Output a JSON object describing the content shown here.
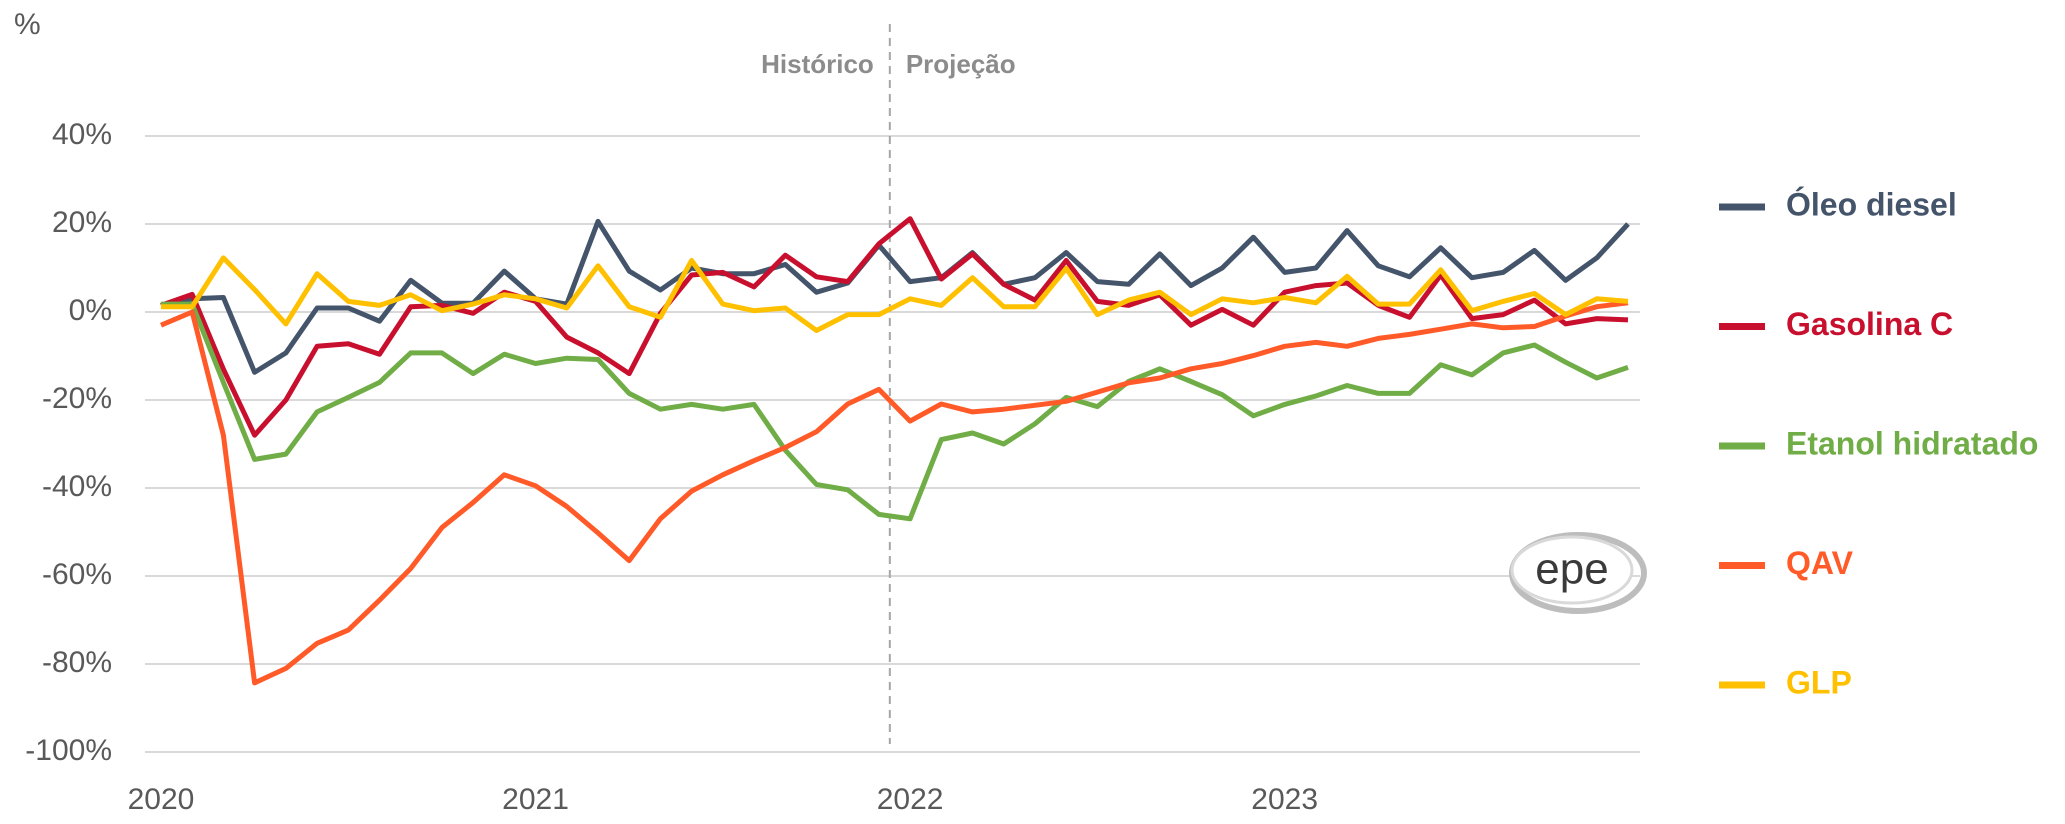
{
  "chart_data": {
    "type": "line",
    "y_label": "%",
    "annotations": [
      "Histórico",
      "Projeção"
    ],
    "logo": "epe",
    "categories": [
      "2020",
      null,
      null,
      null,
      null,
      null,
      null,
      null,
      null,
      null,
      null,
      null,
      "2021",
      null,
      null,
      null,
      null,
      null,
      null,
      null,
      null,
      null,
      null,
      null,
      "2022",
      null,
      null,
      null,
      null,
      null,
      null,
      null,
      null,
      null,
      null,
      null,
      "2023",
      null,
      null,
      null,
      null,
      null,
      null,
      null,
      null,
      null,
      null,
      null
    ],
    "ylim": [
      -100,
      40
    ],
    "yticks": [
      {
        "value": 40,
        "label": "40%"
      },
      {
        "value": 20,
        "label": "20%"
      },
      {
        "value": 0,
        "label": "0%"
      },
      {
        "value": -20,
        "label": "-20%"
      },
      {
        "value": -40,
        "label": "-40%"
      },
      {
        "value": -60,
        "label": "-60%"
      },
      {
        "value": -80,
        "label": "-80%"
      },
      {
        "value": -100,
        "label": "-100%"
      }
    ],
    "grid": true,
    "legend": "right",
    "series": [
      {
        "name": "Óleo diesel",
        "color": "#44546a",
        "values": [
          1.5,
          3,
          3.3,
          -13.7,
          -9.3,
          0.9,
          0.9,
          -2.1,
          7.2,
          2,
          2,
          9.3,
          3,
          1.8,
          20.6,
          9.3,
          5,
          10,
          8.7,
          8.7,
          10.8,
          4.5,
          6.6,
          15.2,
          6.9,
          7.8,
          13.5,
          6.3,
          7.8,
          13.5,
          6.9,
          6.3,
          13.2,
          6,
          10,
          17,
          9,
          10,
          18.5,
          10.5,
          8,
          14.6,
          7.8,
          9,
          14,
          7.2,
          12.3,
          20
        ]
      },
      {
        "name": "Gasolina C",
        "color": "#c8102e",
        "values": [
          1.5,
          4,
          -13,
          -28,
          -20,
          -7.8,
          -7.2,
          -9.6,
          1.2,
          1.5,
          -0.3,
          4.5,
          2.4,
          -5.7,
          -9.3,
          -14,
          -0.3,
          8.4,
          9,
          5.7,
          12.9,
          8,
          6.9,
          15.5,
          21.2,
          7.5,
          13.2,
          6.3,
          2.7,
          11.7,
          2.4,
          1.5,
          3.9,
          -3,
          0.6,
          -3,
          4.5,
          6,
          6.6,
          1.5,
          -1.2,
          8.4,
          -1.5,
          -0.6,
          2.7,
          -2.7,
          -1.5,
          -1.8
        ]
      },
      {
        "name": "Etanol hidratado",
        "color": "#70ad47",
        "values": [
          1.8,
          1.8,
          -16,
          -33.5,
          -32.3,
          -22.7,
          -19.4,
          -16,
          -9.3,
          -9.3,
          -14,
          -9.6,
          -11.7,
          -10.5,
          -10.8,
          -18.5,
          -22.1,
          -21,
          -22.1,
          -21,
          -31.4,
          -39.2,
          -40.4,
          -46,
          -47,
          -29,
          -27.5,
          -30,
          -25.4,
          -19.4,
          -21.5,
          -15.8,
          -12.9,
          -15.8,
          -18.8,
          -23.6,
          -21,
          -19.1,
          -16.7,
          -18.5,
          -18.5,
          -12,
          -14.3,
          -9.3,
          -7.5,
          -11.4,
          -15,
          -12.6
        ]
      },
      {
        "name": "QAV",
        "color": "#ff5a28",
        "values": [
          -3,
          0,
          -28,
          -84.3,
          -81,
          -75.3,
          -72.3,
          -65.5,
          -58.3,
          -49,
          -43.3,
          -37,
          -39.5,
          -44.2,
          -50.2,
          -56.5,
          -47,
          -40.7,
          -37,
          -33.8,
          -30.8,
          -27.2,
          -20.9,
          -17.6,
          -24.8,
          -20.9,
          -22.7,
          -22.1,
          -21.2,
          -20.3,
          -18.2,
          -16.1,
          -15,
          -12.9,
          -11.7,
          -9.9,
          -7.8,
          -6.9,
          -7.8,
          -6,
          -5.1,
          -3.9,
          -2.7,
          -3.6,
          -3.3,
          -0.9,
          1.2,
          2.1
        ]
      },
      {
        "name": "GLP",
        "color": "#ffc000",
        "values": [
          1.2,
          1.2,
          12.3,
          5.1,
          -2.7,
          8.7,
          2.4,
          1.5,
          3.9,
          0.3,
          1.8,
          3.9,
          3,
          0.9,
          10.5,
          1.2,
          -1.2,
          11.7,
          1.8,
          0.3,
          0.9,
          -4.2,
          -0.6,
          -0.6,
          3,
          1.5,
          7.8,
          1.2,
          1.2,
          9.9,
          -0.6,
          2.7,
          4.5,
          -0.6,
          3,
          2.1,
          3.3,
          2.1,
          8.1,
          1.8,
          1.8,
          9.6,
          0.3,
          2.4,
          4.2,
          -0.6,
          3,
          2.4
        ]
      }
    ]
  }
}
